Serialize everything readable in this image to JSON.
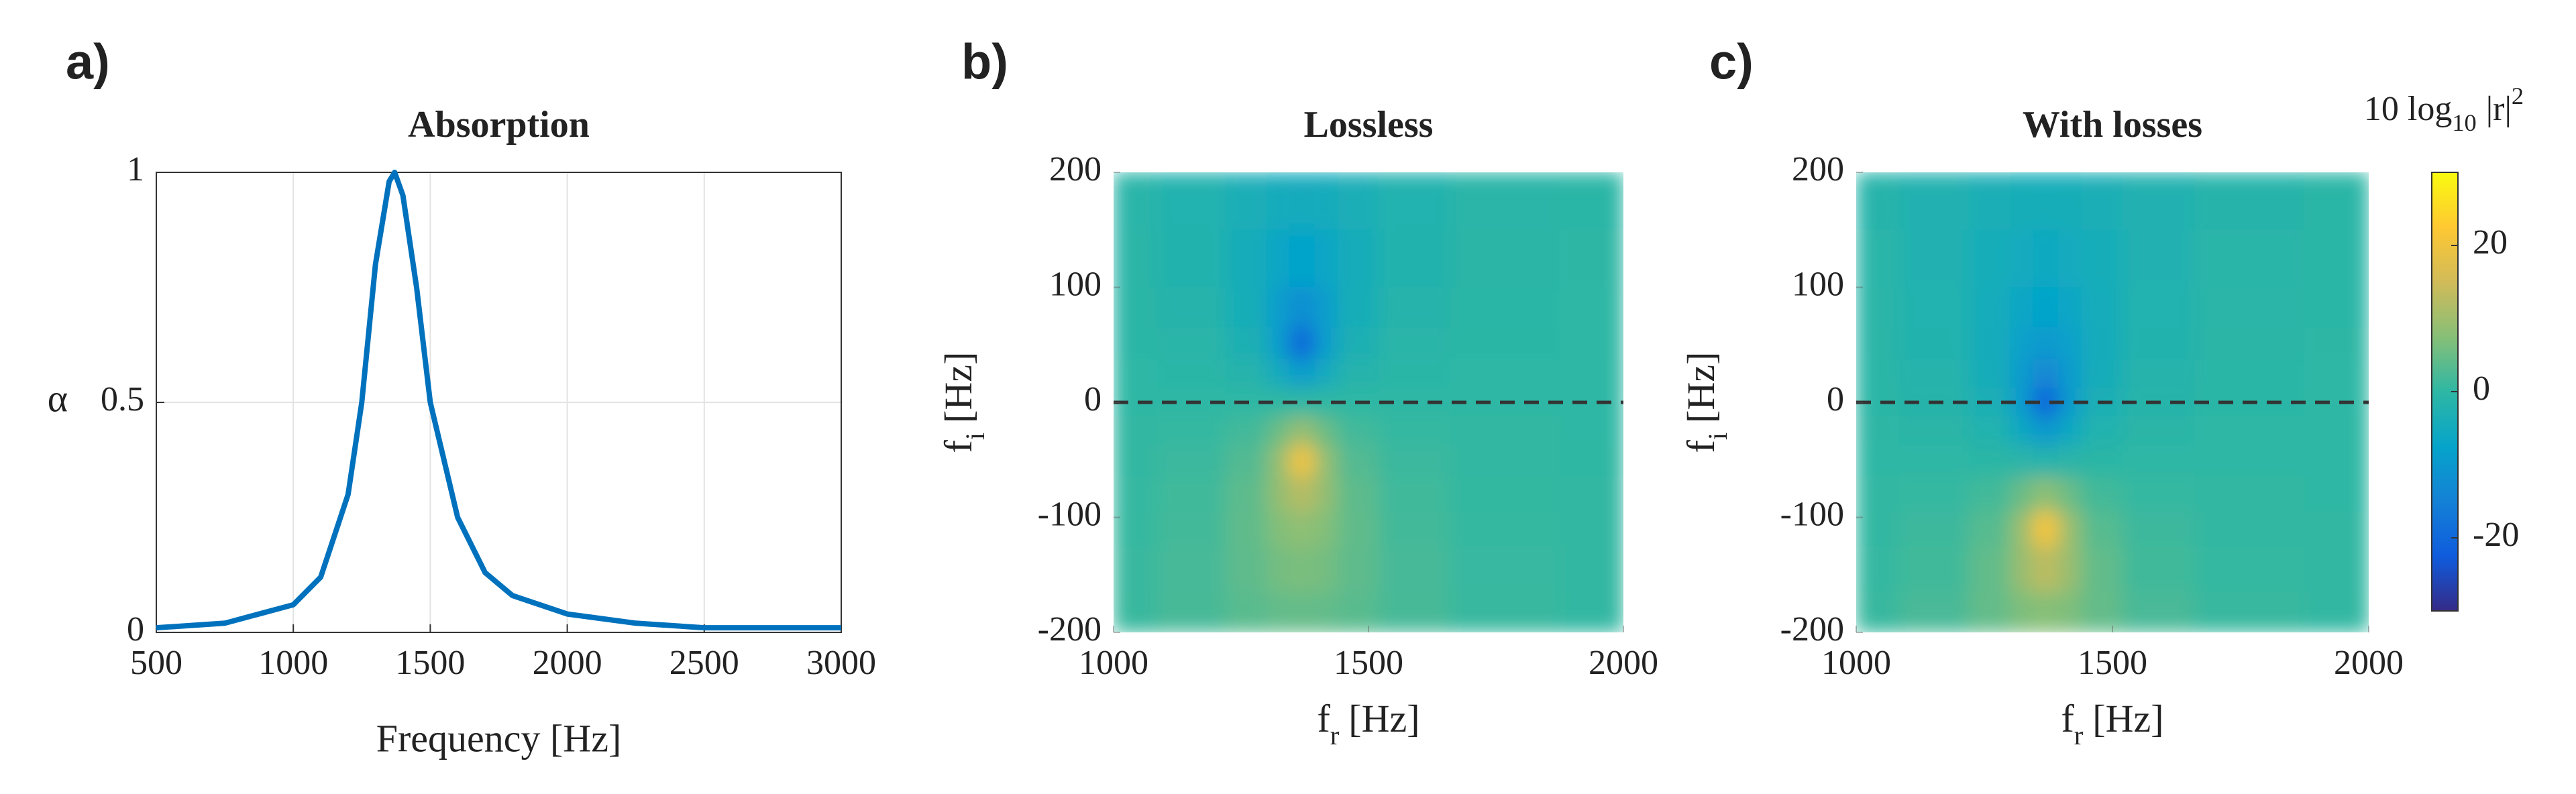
{
  "chart_data": [
    {
      "type": "line",
      "panel_label": "a)",
      "title": "Absorption",
      "xlabel": "Frequency [Hz]",
      "ylabel": "α",
      "x": [
        500,
        750,
        1000,
        1100,
        1200,
        1250,
        1300,
        1350,
        1370,
        1400,
        1450,
        1500,
        1600,
        1700,
        1800,
        2000,
        2250,
        2500,
        2750,
        3000
      ],
      "values": [
        0.01,
        0.02,
        0.06,
        0.12,
        0.3,
        0.5,
        0.8,
        0.98,
        1,
        0.95,
        0.75,
        0.5,
        0.25,
        0.13,
        0.08,
        0.04,
        0.02,
        0.01,
        0.01,
        0.01
      ],
      "color": "#0072bd",
      "xlim": [
        500,
        3000
      ],
      "xticks": [
        500,
        1000,
        1500,
        2000,
        2500,
        3000
      ],
      "ylim": [
        0,
        1
      ],
      "yticks": [
        0,
        0.5,
        1
      ],
      "grid": true
    },
    {
      "type": "heatmap",
      "panel_label": "b)",
      "title": "Lossless",
      "xlabel": [
        "f",
        "r",
        "[Hz]"
      ],
      "ylabel": [
        "f",
        "i",
        "[Hz]"
      ],
      "x": [
        1000,
        1170,
        1270,
        1330,
        1360,
        1380,
        1410,
        1470,
        1570,
        1750,
        2000
      ],
      "y": [
        180,
        120,
        80,
        50,
        25,
        0,
        -25,
        -50,
        -80,
        -110,
        -140,
        -190
      ],
      "values": [
        [
          -0.91,
          -2.13,
          -3.69,
          -4.69,
          -4.94,
          -4.94,
          -4.69,
          -3.69,
          -2.13,
          -0.88,
          -0.36
        ],
        [
          -0.68,
          -1.86,
          -4.17,
          -6.71,
          -7.63,
          -7.63,
          -6.71,
          -4.17,
          -1.86,
          -0.65,
          -0.25
        ],
        [
          -0.48,
          -1.43,
          -3.92,
          -8.69,
          -12.3,
          -12.3,
          -8.69,
          -3.92,
          -1.43,
          -0.45,
          -0.17
        ],
        [
          -0.31,
          -0.97,
          -3.01,
          -8.6,
          -20,
          -20,
          -8.6,
          -3.01,
          -0.97,
          -0.29,
          -0.11
        ],
        [
          -0.16,
          -0.5,
          -1.67,
          -5.12,
          -8.97,
          -8.97,
          -5.12,
          -1.67,
          -0.5,
          -0.15,
          -0.05
        ],
        [
          0,
          0,
          0,
          0,
          0,
          0,
          0,
          0,
          0,
          0,
          0
        ],
        [
          0.16,
          0.5,
          1.67,
          5.12,
          8.97,
          8.97,
          5.12,
          1.67,
          0.5,
          0.15,
          0.05
        ],
        [
          0.31,
          0.97,
          3.01,
          8.6,
          20,
          20,
          8.6,
          3.01,
          0.97,
          0.29,
          0.11
        ],
        [
          0.48,
          1.43,
          3.92,
          8.69,
          12.3,
          12.3,
          8.69,
          3.92,
          1.43,
          0.45,
          0.17
        ],
        [
          0.63,
          1.77,
          4.18,
          7.19,
          8.42,
          8.42,
          7.19,
          4.18,
          1.77,
          0.6,
          0.23
        ],
        [
          0.77,
          1.99,
          4.06,
          5.9,
          6.45,
          6.45,
          5.9,
          4.06,
          1.99,
          0.73,
          0.29
        ],
        [
          0.94,
          2.14,
          3.59,
          4.46,
          4.67,
          4.67,
          4.46,
          3.59,
          2.14,
          0.91,
          0.38
        ]
      ],
      "xlim": [
        1000,
        2000
      ],
      "xticks": [
        1000,
        1500,
        2000
      ],
      "ylim": [
        -200,
        200
      ],
      "yticks": [
        -200,
        -100,
        0,
        100,
        200
      ],
      "hline": 0,
      "clim": [
        -30,
        30
      ],
      "colormap": [
        "#352a87",
        "#0f5cdd",
        "#1481d6",
        "#06a4ca",
        "#2eb7a4",
        "#87bf77",
        "#d1bb59",
        "#fec832",
        "#f9fb0e"
      ]
    },
    {
      "type": "heatmap",
      "panel_label": "c)",
      "title": "With losses",
      "xlabel": [
        "f",
        "r",
        "[Hz]"
      ],
      "ylabel": [
        "f",
        "i",
        "[Hz]"
      ],
      "x": [
        1000,
        1170,
        1270,
        1330,
        1360,
        1380,
        1410,
        1470,
        1570,
        1750,
        2000
      ],
      "y": [
        180,
        120,
        80,
        50,
        25,
        0,
        -25,
        -50,
        -80,
        -110,
        -140,
        -190
      ],
      "values": [
        [
          -1.16,
          -2.34,
          -3.46,
          -4.02,
          -4.13,
          -4.13,
          -4.02,
          -3.46,
          -2.34,
          -1.11,
          -0.49
        ],
        [
          -0.98,
          -2.32,
          -4.11,
          -5.32,
          -5.63,
          -5.63,
          -5.32,
          -4.11,
          -2.32,
          -0.94,
          -0.39
        ],
        [
          -0.82,
          -2.15,
          -4.49,
          -6.73,
          -7.46,
          -7.46,
          -6.73,
          -4.49,
          -2.15,
          -0.78,
          -0.31
        ],
        [
          -0.67,
          -1.89,
          -4.55,
          -8.22,
          -9.95,
          -9.95,
          -8.22,
          -4.55,
          -1.89,
          -0.63,
          -0.24
        ],
        [
          -0.52,
          -1.56,
          -4.24,
          -9.5,
          -14,
          -14,
          -9.5,
          -4.24,
          -1.56,
          -0.5,
          -0.19
        ],
        [
          -0.37,
          -1.15,
          -3.44,
          -9.33,
          -20.9,
          -20.9,
          -9.33,
          -3.44,
          -1.15,
          -0.35,
          -0.13
        ],
        [
          -0.2,
          -0.65,
          -2.1,
          -5.98,
          -10.05,
          -10.05,
          -5.98,
          -2.1,
          -0.65,
          -0.19,
          -0.07
        ],
        [
          -0.03,
          -0.11,
          -0.37,
          -1.03,
          -1.53,
          -1.53,
          -1.03,
          -0.37,
          -0.11,
          -0.03,
          -0.01
        ],
        [
          0.17,
          0.55,
          1.77,
          5.05,
          8.13,
          8.13,
          5.05,
          1.77,
          0.55,
          0.16,
          0.06
        ],
        [
          0.37,
          1.15,
          3.44,
          9.33,
          20.9,
          20.9,
          9.33,
          3.44,
          1.15,
          0.35,
          0.13
        ],
        [
          0.55,
          1.64,
          4.34,
          9.28,
          12.9,
          12.9,
          9.28,
          4.34,
          1.64,
          0.53,
          0.2
        ],
        [
          0.82,
          2.15,
          4.49,
          6.73,
          7.46,
          7.46,
          6.73,
          4.49,
          2.15,
          0.78,
          0.31
        ]
      ],
      "xlim": [
        1000,
        2000
      ],
      "xticks": [
        1000,
        1500,
        2000
      ],
      "ylim": [
        -200,
        200
      ],
      "yticks": [
        -200,
        -100,
        0,
        100,
        200
      ],
      "hline": 0,
      "clim": [
        -30,
        30
      ],
      "colormap": [
        "#352a87",
        "#0f5cdd",
        "#1481d6",
        "#06a4ca",
        "#2eb7a4",
        "#87bf77",
        "#d1bb59",
        "#fec832",
        "#f9fb0e"
      ],
      "colorbar": {
        "label": [
          "10 log",
          "10",
          "|r|",
          "2"
        ],
        "ticks": [
          -20,
          0,
          20
        ]
      }
    }
  ]
}
